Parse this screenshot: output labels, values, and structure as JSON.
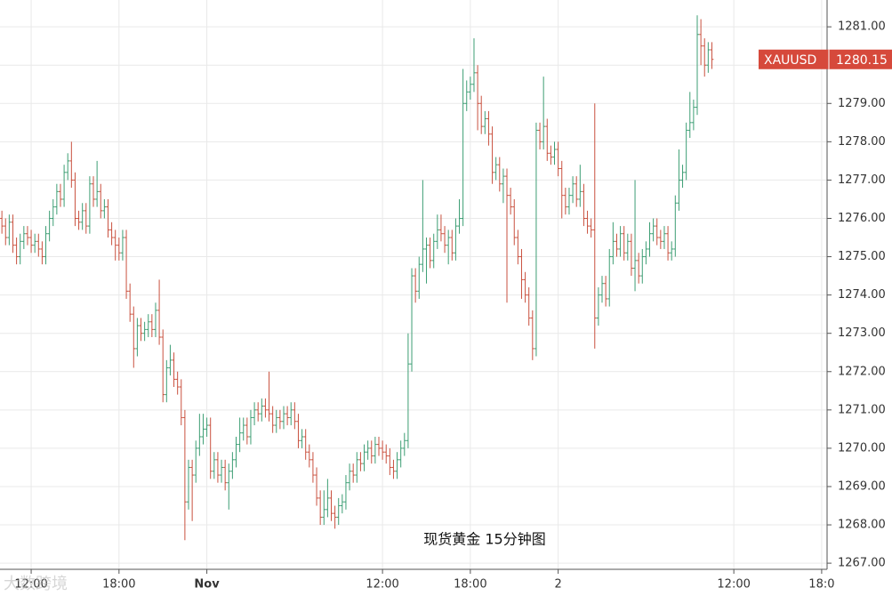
{
  "chart_data": {
    "type": "ohlc",
    "symbol": "XAUUSD",
    "title": "现货黄金 15分钟图",
    "watermark": "大数跨境",
    "up_color": "#3d9e74",
    "down_color": "#c9513f",
    "label_color": "#d6493b",
    "grid": true,
    "xlim": [
      9.87,
      66.37
    ],
    "ylim": [
      1266.84,
      1281.7
    ],
    "xticks": [
      {
        "value": 12,
        "label": "12:00"
      },
      {
        "value": 18,
        "label": "18:00"
      },
      {
        "value": 24,
        "label": "Nov"
      },
      {
        "value": 36,
        "label": "12:00"
      },
      {
        "value": 42,
        "label": "18:00"
      },
      {
        "value": 48,
        "label": "2"
      },
      {
        "value": 60,
        "label": "12:00"
      },
      {
        "value": 66,
        "label": "18:0"
      }
    ],
    "yticks": [
      {
        "value": 1267,
        "label": "1267.00"
      },
      {
        "value": 1268,
        "label": "1268.00"
      },
      {
        "value": 1269,
        "label": "1269.00"
      },
      {
        "value": 1270,
        "label": "1270.00"
      },
      {
        "value": 1271,
        "label": "1271.00"
      },
      {
        "value": 1272,
        "label": "1272.00"
      },
      {
        "value": 1273,
        "label": "1273.00"
      },
      {
        "value": 1274,
        "label": "1274.00"
      },
      {
        "value": 1275,
        "label": "1275.00"
      },
      {
        "value": 1276,
        "label": "1276.00"
      },
      {
        "value": 1277,
        "label": "1277.00"
      },
      {
        "value": 1278,
        "label": "1278.00"
      },
      {
        "value": 1279,
        "label": "1279.00"
      },
      {
        "value": 1280,
        "label": "1280.00"
      },
      {
        "value": 1281,
        "label": "1281.00"
      }
    ],
    "x": [
      10,
      10.25,
      10.5,
      10.75,
      11,
      11.25,
      11.5,
      11.75,
      12,
      12.25,
      12.5,
      12.75,
      13,
      13.25,
      13.5,
      13.75,
      14,
      14.25,
      14.5,
      14.75,
      15,
      15.25,
      15.5,
      15.75,
      16,
      16.25,
      16.5,
      16.75,
      17,
      17.25,
      17.5,
      17.75,
      18,
      18.25,
      18.5,
      18.75,
      19,
      19.25,
      19.5,
      19.75,
      20,
      20.25,
      20.5,
      20.75,
      21,
      21.25,
      21.5,
      21.75,
      22,
      22.25,
      22.5,
      22.75,
      23,
      23.25,
      23.5,
      23.75,
      24,
      24.25,
      24.5,
      24.75,
      25,
      25.25,
      25.5,
      25.75,
      26,
      26.25,
      26.5,
      26.75,
      27,
      27.25,
      27.5,
      27.75,
      28,
      28.25,
      28.5,
      28.75,
      29,
      29.25,
      29.5,
      29.75,
      30,
      30.25,
      30.5,
      30.75,
      31,
      31.25,
      31.5,
      31.75,
      32,
      32.25,
      32.5,
      32.75,
      33,
      33.25,
      33.5,
      33.75,
      34,
      34.25,
      34.5,
      34.75,
      35,
      35.25,
      35.5,
      35.75,
      36,
      36.25,
      36.5,
      36.75,
      37,
      37.25,
      37.5,
      37.75,
      38,
      38.25,
      38.5,
      38.75,
      39,
      39.25,
      39.5,
      39.75,
      40,
      40.25,
      40.5,
      40.75,
      41,
      41.25,
      41.5,
      41.75,
      42,
      42.25,
      42.5,
      42.75,
      43,
      43.25,
      43.5,
      43.75,
      44,
      44.25,
      44.5,
      44.75,
      45,
      45.25,
      45.5,
      45.75,
      46,
      46.25,
      46.5,
      46.75,
      47,
      47.25,
      47.5,
      47.75,
      48,
      48.25,
      48.5,
      48.75,
      49,
      49.25,
      49.5,
      49.75,
      50,
      50.25,
      50.5,
      50.75,
      51,
      51.25,
      51.5,
      51.75,
      52,
      52.25,
      52.5,
      52.75,
      53,
      53.25,
      53.5,
      53.75,
      54,
      54.25,
      54.5,
      54.75,
      55,
      55.25,
      55.5,
      55.75,
      56,
      56.25,
      56.5,
      56.75,
      57,
      57.25,
      57.5,
      57.75,
      58,
      58.25,
      58.5
    ],
    "open": [
      1276.0,
      1275.8,
      1275.5,
      1275.9,
      1275.3,
      1275.0,
      1275.4,
      1275.6,
      1275.5,
      1275.3,
      1275.4,
      1275.2,
      1275.0,
      1275.6,
      1276.0,
      1276.3,
      1276.7,
      1276.5,
      1277.2,
      1277.5,
      1277.0,
      1276.0,
      1275.9,
      1276.2,
      1275.8,
      1276.9,
      1276.5,
      1276.7,
      1276.2,
      1276.3,
      1275.7,
      1275.5,
      1275.3,
      1275.1,
      1275.5,
      1274.1,
      1273.5,
      1272.6,
      1273.2,
      1273.0,
      1273.1,
      1273.3,
      1273.1,
      1273.6,
      1272.9,
      1271.4,
      1272.1,
      1272.3,
      1271.8,
      1271.6,
      1270.8,
      1268.6,
      1269.5,
      1269.3,
      1270.0,
      1270.3,
      1270.5,
      1270.6,
      1269.4,
      1269.7,
      1269.3,
      1269.5,
      1269.1,
      1269.4,
      1269.7,
      1270.1,
      1270.4,
      1270.6,
      1270.3,
      1270.8,
      1271.0,
      1270.9,
      1271.1,
      1271.0,
      1270.9,
      1270.6,
      1270.8,
      1270.7,
      1270.9,
      1270.8,
      1271.0,
      1270.7,
      1270.2,
      1270.3,
      1269.9,
      1269.7,
      1269.3,
      1268.7,
      1268.2,
      1268.4,
      1268.7,
      1268.3,
      1268.2,
      1268.5,
      1268.6,
      1269.1,
      1269.4,
      1269.3,
      1269.7,
      1269.6,
      1269.9,
      1270.0,
      1269.8,
      1270.1,
      1270.0,
      1269.9,
      1269.8,
      1269.5,
      1269.4,
      1269.7,
      1270.0,
      1270.2,
      1272.2,
      1274.5,
      1274.1,
      1274.8,
      1275.2,
      1275.3,
      1274.9,
      1275.4,
      1275.7,
      1275.6,
      1275.3,
      1275.5,
      1275.1,
      1275.8,
      1276.0,
      1279.0,
      1279.3,
      1279.5,
      1279.8,
      1279.0,
      1278.4,
      1278.6,
      1278.2,
      1277.2,
      1277.4,
      1276.9,
      1277.1,
      1276.6,
      1276.3,
      1275.5,
      1275.0,
      1274.4,
      1274.0,
      1273.4,
      1272.6,
      1278.3,
      1278.0,
      1278.4,
      1277.7,
      1277.6,
      1277.8,
      1277.3,
      1276.6,
      1276.3,
      1276.6,
      1276.9,
      1276.5,
      1276.7,
      1276.0,
      1275.8,
      1275.7,
      1273.4,
      1274.0,
      1274.3,
      1273.9,
      1275.0,
      1275.4,
      1275.2,
      1275.6,
      1275.1,
      1275.4,
      1274.7,
      1274.9,
      1274.5,
      1275.0,
      1275.2,
      1275.6,
      1275.8,
      1275.5,
      1275.4,
      1275.6,
      1275.1,
      1275.2,
      1276.4,
      1277.0,
      1277.2,
      1278.3,
      1278.5,
      1278.9,
      1280.8,
      1280.5,
      1280.0,
      1280.4
    ],
    "high": [
      1276.2,
      1276.0,
      1276.1,
      1276.1,
      1275.5,
      1275.6,
      1275.8,
      1275.8,
      1275.7,
      1275.6,
      1275.6,
      1275.4,
      1275.8,
      1276.2,
      1276.5,
      1276.9,
      1276.9,
      1277.4,
      1277.7,
      1278.0,
      1277.2,
      1276.2,
      1276.4,
      1276.4,
      1277.1,
      1277.1,
      1277.5,
      1276.9,
      1276.5,
      1276.5,
      1275.9,
      1275.7,
      1275.5,
      1275.7,
      1275.7,
      1274.3,
      1273.7,
      1273.4,
      1273.4,
      1273.3,
      1273.5,
      1273.5,
      1273.8,
      1274.4,
      1273.1,
      1272.3,
      1272.7,
      1272.5,
      1272.0,
      1271.8,
      1271.0,
      1269.7,
      1269.7,
      1270.2,
      1270.9,
      1270.9,
      1270.8,
      1270.8,
      1269.9,
      1269.9,
      1269.7,
      1269.7,
      1269.6,
      1269.9,
      1270.3,
      1270.8,
      1270.8,
      1270.8,
      1271.0,
      1271.2,
      1271.2,
      1271.3,
      1271.3,
      1272.0,
      1271.1,
      1271.0,
      1271.0,
      1271.1,
      1271.1,
      1271.2,
      1271.2,
      1270.9,
      1270.5,
      1270.5,
      1270.1,
      1269.9,
      1269.5,
      1268.9,
      1268.9,
      1269.2,
      1268.9,
      1268.5,
      1268.7,
      1268.8,
      1269.3,
      1269.6,
      1269.6,
      1269.9,
      1269.9,
      1270.1,
      1270.2,
      1270.2,
      1270.3,
      1270.3,
      1270.2,
      1270.1,
      1270.0,
      1269.7,
      1269.9,
      1270.2,
      1270.4,
      1273.0,
      1274.7,
      1274.7,
      1275.0,
      1277.0,
      1275.5,
      1275.5,
      1275.6,
      1276.1,
      1276.1,
      1275.8,
      1275.7,
      1275.7,
      1276.0,
      1276.5,
      1279.9,
      1279.6,
      1279.7,
      1280.7,
      1280.0,
      1279.2,
      1278.8,
      1278.8,
      1278.4,
      1277.6,
      1277.6,
      1277.3,
      1277.3,
      1276.8,
      1276.5,
      1275.7,
      1275.2,
      1274.6,
      1274.2,
      1273.6,
      1278.5,
      1278.5,
      1279.7,
      1278.6,
      1277.9,
      1278.0,
      1278.0,
      1277.5,
      1276.8,
      1276.8,
      1277.1,
      1277.1,
      1277.4,
      1276.9,
      1276.2,
      1276.0,
      1279.0,
      1274.2,
      1274.5,
      1274.5,
      1275.2,
      1275.9,
      1275.6,
      1275.8,
      1275.8,
      1275.6,
      1275.6,
      1277.0,
      1275.1,
      1275.2,
      1275.4,
      1275.9,
      1276.0,
      1276.0,
      1275.7,
      1275.8,
      1275.8,
      1275.4,
      1276.6,
      1277.8,
      1277.4,
      1278.5,
      1279.3,
      1279.1,
      1281.3,
      1281.2,
      1280.7,
      1280.6,
      1280.6
    ],
    "low": [
      1275.6,
      1275.3,
      1275.3,
      1275.1,
      1274.8,
      1274.8,
      1275.2,
      1275.3,
      1275.1,
      1275.1,
      1275.0,
      1274.8,
      1274.8,
      1275.4,
      1275.8,
      1276.1,
      1276.3,
      1276.3,
      1277.0,
      1276.8,
      1275.8,
      1275.7,
      1275.7,
      1275.6,
      1275.6,
      1276.3,
      1276.3,
      1276.0,
      1276.0,
      1275.5,
      1275.3,
      1274.9,
      1274.9,
      1274.9,
      1273.9,
      1273.3,
      1272.1,
      1272.4,
      1272.8,
      1272.8,
      1272.9,
      1272.9,
      1272.9,
      1272.7,
      1271.2,
      1271.2,
      1271.9,
      1271.6,
      1271.4,
      1270.6,
      1267.6,
      1268.4,
      1268.1,
      1269.1,
      1269.8,
      1270.1,
      1270.3,
      1269.2,
      1269.2,
      1269.1,
      1269.1,
      1268.9,
      1268.4,
      1269.2,
      1269.5,
      1269.9,
      1270.2,
      1270.1,
      1270.1,
      1270.6,
      1270.7,
      1270.7,
      1270.8,
      1270.7,
      1270.4,
      1270.4,
      1270.5,
      1270.5,
      1270.6,
      1270.6,
      1270.5,
      1270.0,
      1270.0,
      1269.7,
      1269.5,
      1269.1,
      1268.5,
      1268.0,
      1268.0,
      1268.2,
      1268.1,
      1267.9,
      1268.0,
      1268.3,
      1268.4,
      1268.9,
      1269.1,
      1269.1,
      1269.4,
      1269.4,
      1269.7,
      1269.6,
      1269.6,
      1269.8,
      1269.7,
      1269.6,
      1269.3,
      1269.2,
      1269.2,
      1269.5,
      1269.8,
      1270.0,
      1272.0,
      1273.8,
      1273.9,
      1274.6,
      1274.3,
      1274.7,
      1274.7,
      1275.2,
      1275.4,
      1275.1,
      1274.8,
      1274.9,
      1274.9,
      1275.6,
      1275.8,
      1278.8,
      1279.1,
      1279.3,
      1278.3,
      1278.2,
      1278.2,
      1277.9,
      1276.9,
      1277.0,
      1276.7,
      1276.4,
      1273.8,
      1276.1,
      1275.3,
      1274.8,
      1273.9,
      1273.8,
      1273.2,
      1272.3,
      1272.4,
      1277.8,
      1277.8,
      1277.5,
      1277.4,
      1277.4,
      1277.1,
      1276.0,
      1276.1,
      1276.1,
      1276.4,
      1276.3,
      1276.3,
      1275.8,
      1275.6,
      1275.5,
      1272.6,
      1273.2,
      1273.8,
      1273.7,
      1273.7,
      1274.8,
      1275.0,
      1275.0,
      1274.9,
      1274.9,
      1274.5,
      1274.1,
      1274.3,
      1274.3,
      1274.8,
      1275.0,
      1275.4,
      1275.3,
      1275.2,
      1275.2,
      1274.9,
      1274.9,
      1275.0,
      1276.2,
      1276.8,
      1277.0,
      1278.1,
      1278.3,
      1278.7,
      1280.0,
      1279.7,
      1279.8,
      1279.9
    ],
    "close": [
      1275.8,
      1275.5,
      1275.9,
      1275.3,
      1275.0,
      1275.4,
      1275.6,
      1275.5,
      1275.3,
      1275.4,
      1275.2,
      1275.0,
      1275.6,
      1276.0,
      1276.3,
      1276.7,
      1276.5,
      1277.2,
      1277.5,
      1277.0,
      1276.0,
      1275.9,
      1276.2,
      1275.8,
      1276.9,
      1276.5,
      1276.7,
      1276.2,
      1276.3,
      1275.7,
      1275.5,
      1275.3,
      1275.1,
      1275.5,
      1274.1,
      1273.5,
      1272.6,
      1273.2,
      1273.0,
      1273.1,
      1273.3,
      1273.1,
      1273.6,
      1272.9,
      1271.4,
      1272.1,
      1272.3,
      1271.8,
      1271.6,
      1270.8,
      1268.6,
      1269.5,
      1269.3,
      1270.0,
      1270.3,
      1270.5,
      1270.6,
      1269.4,
      1269.7,
      1269.3,
      1269.5,
      1269.1,
      1269.4,
      1269.7,
      1270.1,
      1270.4,
      1270.6,
      1270.3,
      1270.8,
      1271.0,
      1270.9,
      1271.1,
      1271.0,
      1270.9,
      1270.6,
      1270.8,
      1270.7,
      1270.9,
      1270.8,
      1271.0,
      1270.7,
      1270.2,
      1270.3,
      1269.9,
      1269.7,
      1269.3,
      1268.7,
      1268.2,
      1268.4,
      1268.7,
      1268.3,
      1268.2,
      1268.5,
      1268.6,
      1269.1,
      1269.4,
      1269.3,
      1269.7,
      1269.6,
      1269.9,
      1270.0,
      1269.8,
      1270.1,
      1270.0,
      1269.9,
      1269.8,
      1269.5,
      1269.4,
      1269.7,
      1270.0,
      1270.2,
      1272.2,
      1274.5,
      1274.1,
      1274.8,
      1275.2,
      1275.3,
      1274.9,
      1275.4,
      1275.7,
      1275.6,
      1275.3,
      1275.5,
      1275.1,
      1275.8,
      1276.0,
      1279.0,
      1279.3,
      1279.5,
      1279.8,
      1279.0,
      1278.4,
      1278.6,
      1278.2,
      1277.2,
      1277.4,
      1276.9,
      1277.1,
      1276.6,
      1276.3,
      1275.5,
      1275.0,
      1274.4,
      1274.0,
      1273.4,
      1272.6,
      1278.3,
      1278.0,
      1278.4,
      1277.7,
      1277.6,
      1277.8,
      1277.3,
      1276.6,
      1276.3,
      1276.6,
      1276.9,
      1276.5,
      1276.7,
      1276.0,
      1275.8,
      1275.7,
      1273.4,
      1274.0,
      1274.3,
      1273.9,
      1275.0,
      1275.4,
      1275.2,
      1275.6,
      1275.1,
      1275.4,
      1274.7,
      1274.9,
      1274.5,
      1275.0,
      1275.2,
      1275.6,
      1275.8,
      1275.5,
      1275.4,
      1275.6,
      1275.1,
      1275.2,
      1276.4,
      1277.0,
      1277.2,
      1278.3,
      1278.5,
      1278.9,
      1280.8,
      1280.5,
      1280.0,
      1280.4,
      1280.15
    ]
  }
}
